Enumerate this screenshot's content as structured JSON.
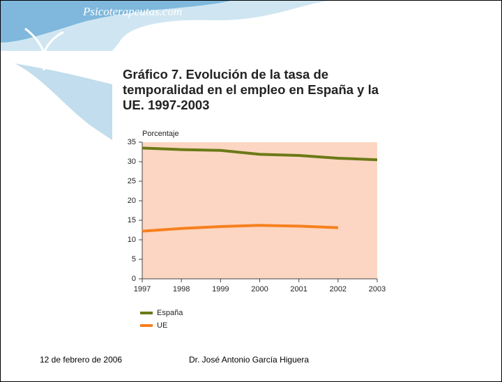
{
  "header": {
    "logo": "Psicoterapeutas.com"
  },
  "chart_data": {
    "type": "line",
    "title": "Gráfico 7. Evolución de la tasa de temporalidad en el empleo en España y la UE. 1997-2003",
    "y_label": "Porcentaje",
    "x": [
      1997,
      1998,
      1999,
      2000,
      2001,
      2002,
      2003
    ],
    "xlim": [
      1997,
      2003
    ],
    "xticks": [
      1997,
      1998,
      1999,
      2000,
      2001,
      2002,
      2003
    ],
    "ylim": [
      0,
      35
    ],
    "yticks": [
      0,
      5,
      10,
      15,
      20,
      25,
      30,
      35
    ],
    "background": "#fcd6c2",
    "series": [
      {
        "name": "España",
        "color": "#6b7a17",
        "values": [
          33.5,
          33.1,
          32.9,
          31.9,
          31.6,
          30.9,
          30.5
        ]
      },
      {
        "name": "UE",
        "color": "#f7801f",
        "values": [
          12.2,
          12.9,
          13.4,
          13.7,
          13.5,
          13.1,
          null
        ]
      }
    ]
  },
  "footer": {
    "date": "12 de febrero de 2006",
    "author": "Dr. José Antonio García Higuera"
  }
}
